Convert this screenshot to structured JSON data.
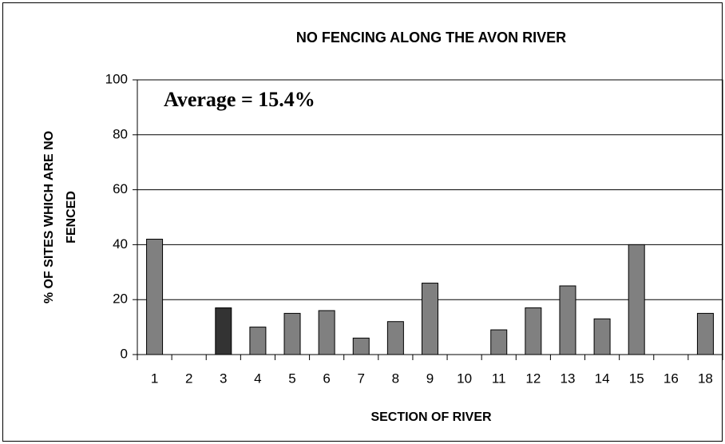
{
  "chart_data": {
    "type": "bar",
    "title": "NO FENCING ALONG THE AVON RIVER",
    "xlabel": "SECTION OF RIVER",
    "ylabel": [
      "% OF SITES WHICH ARE NO",
      "FENCED"
    ],
    "annotation": "Average = 15.4%",
    "categories": [
      "1",
      "2",
      "3",
      "4",
      "5",
      "6",
      "7",
      "8",
      "9",
      "10",
      "11",
      "12",
      "13",
      "14",
      "15",
      "16",
      "18"
    ],
    "values": [
      42,
      0,
      17,
      10,
      15,
      16,
      6,
      12,
      26,
      0,
      9,
      17,
      25,
      13,
      40,
      0,
      15
    ],
    "colors": [
      "#808080",
      "#808080",
      "#333333",
      "#808080",
      "#808080",
      "#808080",
      "#808080",
      "#808080",
      "#808080",
      "#808080",
      "#808080",
      "#808080",
      "#808080",
      "#808080",
      "#808080",
      "#808080",
      "#808080"
    ],
    "ylim": [
      0,
      100
    ],
    "yticks": [
      0,
      20,
      40,
      60,
      80,
      100
    ],
    "grid": true
  }
}
